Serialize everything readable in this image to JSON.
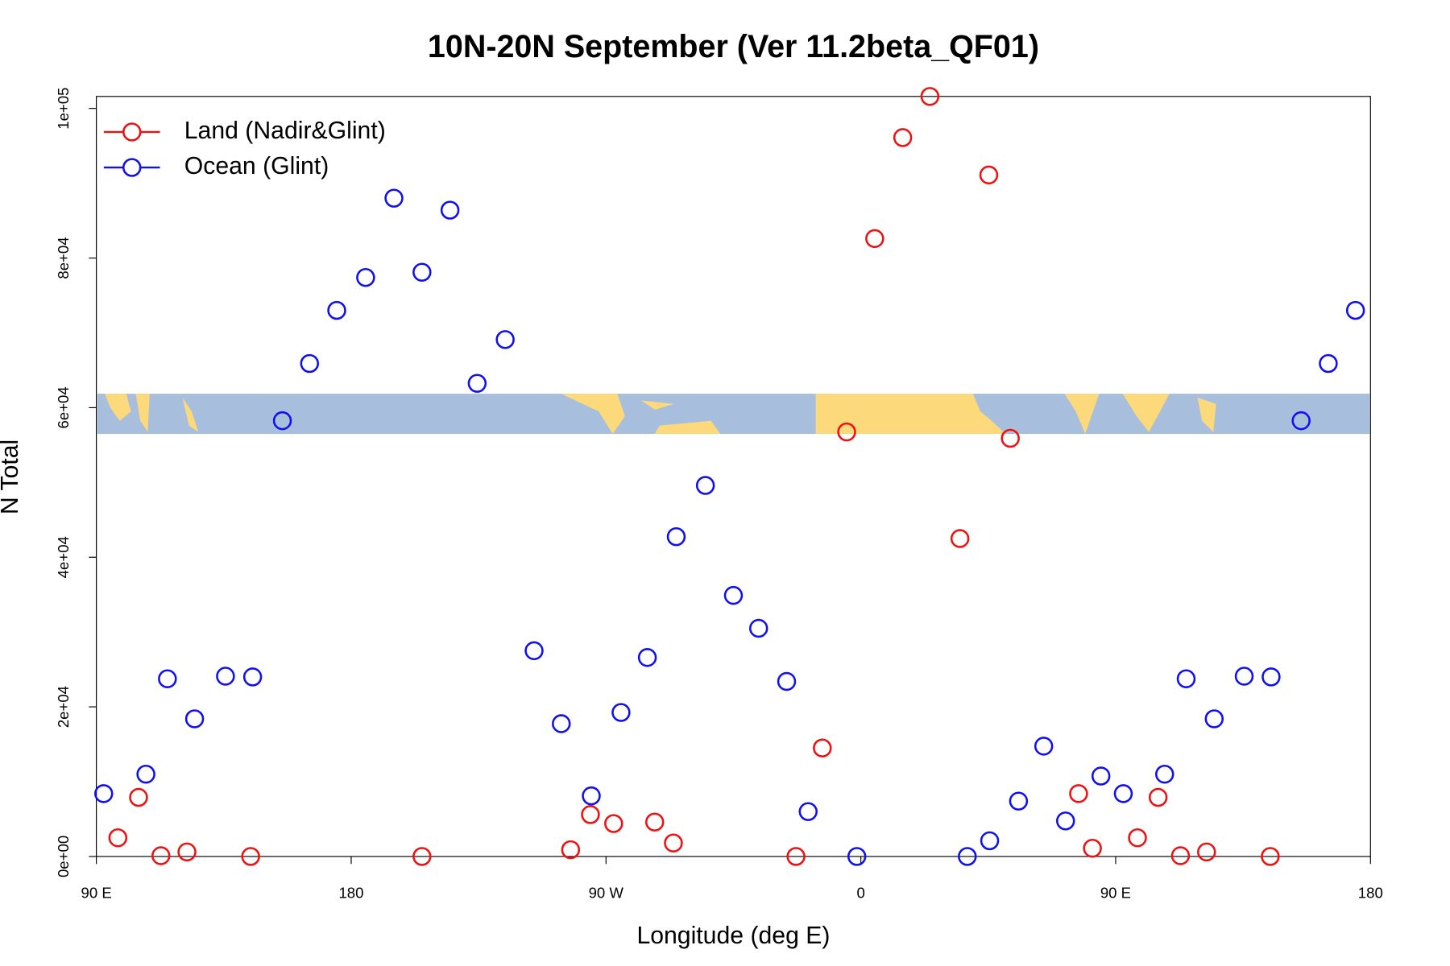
{
  "chart_data": {
    "type": "scatter",
    "title": "10N-20N September (Ver 11.2beta_QF01)",
    "xlabel": "Longitude (deg E)",
    "ylabel": "N Total",
    "xlim": [
      90,
      540
    ],
    "ylim": [
      0,
      101600
    ],
    "xticks": [
      {
        "value": 90,
        "label": "90 E"
      },
      180,
      {
        "value": 270,
        "label": "90 W"
      },
      {
        "value": 360,
        "label": "0"
      },
      {
        "value": 450,
        "label": "90 E"
      },
      {
        "value": 540,
        "label": "180"
      }
    ],
    "yticks": [
      {
        "value": 0,
        "label": "0e+00"
      },
      {
        "value": 20000,
        "label": "2e+04"
      },
      {
        "value": 40000,
        "label": "4e+04"
      },
      {
        "value": 60000,
        "label": "6e+04"
      },
      {
        "value": 80000,
        "label": "8e+04"
      },
      {
        "value": 100000,
        "label": "1e+05"
      }
    ],
    "legend": "topleft",
    "series": [
      {
        "name": "Land (Nadir&Glint)",
        "color": "#ee1111",
        "x": [
          97.6,
          104.9,
          112.8,
          122.0,
          144.5,
          205.0,
          257.5,
          264.5,
          272.7,
          287.2,
          293.8,
          337.1,
          346.4,
          355.0,
          364.9,
          374.8,
          384.4,
          395.0,
          405.2,
          412.8,
          436.9,
          441.8,
          457.7,
          465.0,
          472.9,
          482.1,
          504.6
        ],
        "values": [
          2500,
          7900,
          100,
          600,
          0,
          0,
          900,
          5600,
          4400,
          4600,
          1800,
          0,
          14500,
          56750,
          82600,
          96100,
          101600,
          42500,
          91100,
          55900,
          8400,
          1100,
          2500,
          7900,
          100,
          600,
          0
        ]
      },
      {
        "name": "Ocean (Glint)",
        "color": "#1010ee",
        "x": [
          92.6,
          107.5,
          115.1,
          124.7,
          135.6,
          145.2,
          155.7,
          165.3,
          174.9,
          185.1,
          195.1,
          205.0,
          214.9,
          224.5,
          234.4,
          244.6,
          254.2,
          264.8,
          275.3,
          284.6,
          294.8,
          305.1,
          315.0,
          323.9,
          333.8,
          341.4,
          358.6,
          397.6,
          405.5,
          415.7,
          424.6,
          432.3,
          444.8,
          452.7,
          467.3,
          474.9,
          484.8,
          495.4,
          504.9,
          515.5,
          525.1,
          534.7
        ],
        "values": [
          8400,
          11000,
          23750,
          18400,
          24100,
          24000,
          58250,
          65900,
          73000,
          77400,
          88000,
          78100,
          86400,
          63250,
          69100,
          27500,
          17750,
          8100,
          19250,
          26600,
          42750,
          49600,
          34900,
          30500,
          23400,
          6000,
          0,
          0,
          2100,
          7400,
          14750,
          4750,
          10750,
          8400,
          11000,
          23750,
          18400,
          24100,
          24000,
          58250,
          65900,
          73000
        ]
      }
    ]
  }
}
